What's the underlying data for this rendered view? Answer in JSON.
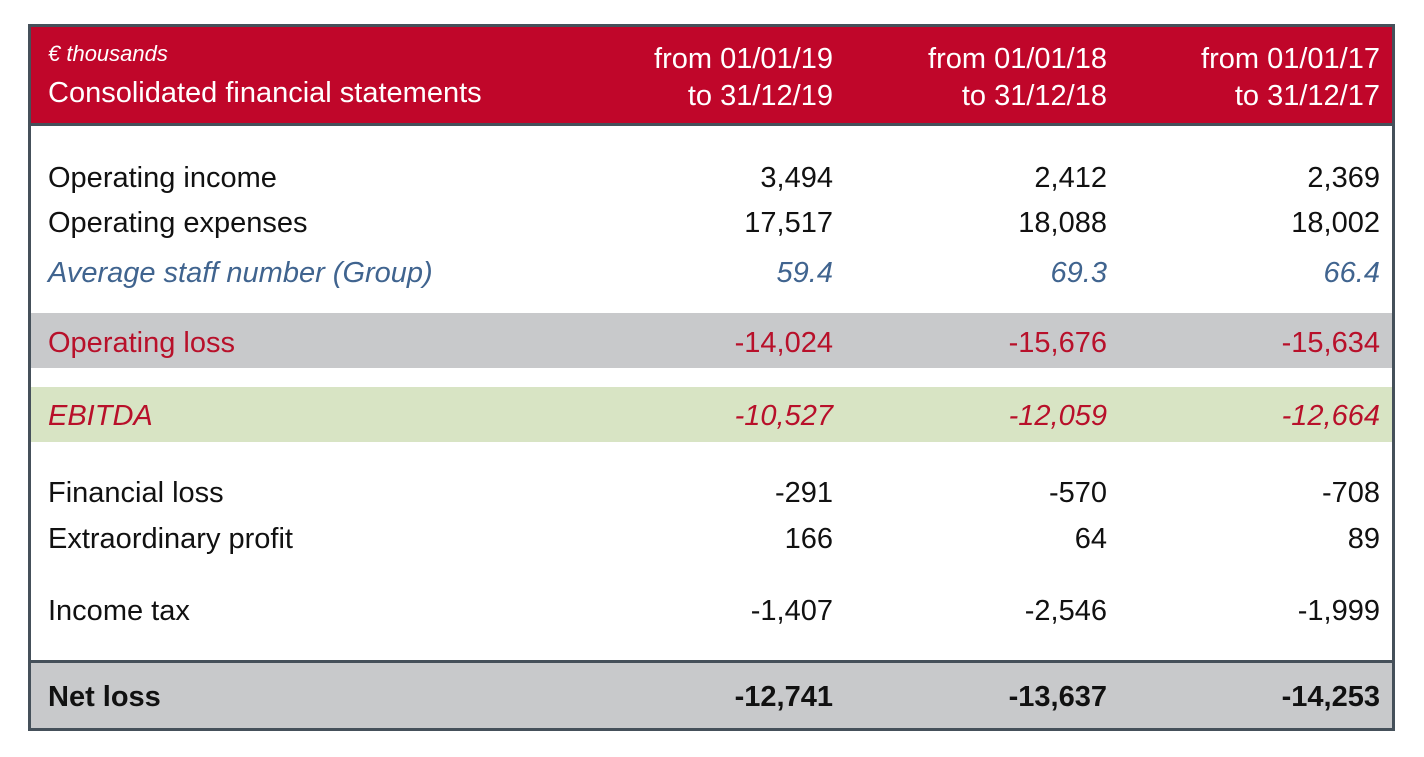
{
  "header": {
    "unit": "€ thousands",
    "statement": "Consolidated financial statements",
    "periods": [
      {
        "from": "from 01/01/19",
        "to": "to 31/12/19"
      },
      {
        "from": "from 01/01/18",
        "to": "to 31/12/18"
      },
      {
        "from": "from 01/01/17",
        "to": "to 31/12/17"
      }
    ]
  },
  "rows": {
    "operating_income": {
      "label": "Operating income",
      "values": [
        "3,494",
        "2,412",
        "2,369"
      ]
    },
    "operating_expenses": {
      "label": "Operating expenses",
      "values": [
        "17,517",
        "18,088",
        "18,002"
      ]
    },
    "average_staff": {
      "label": "Average staff number (Group)",
      "values": [
        "59.4",
        "69.3",
        "66.4"
      ]
    },
    "operating_loss": {
      "label": "Operating loss",
      "values": [
        "-14,024",
        "-15,676",
        "-15,634"
      ]
    },
    "ebitda": {
      "label": "EBITDA",
      "values": [
        "-10,527",
        "-12,059",
        "-12,664"
      ]
    },
    "financial_loss": {
      "label": "Financial loss",
      "values": [
        "-291",
        "-570",
        "-708"
      ]
    },
    "extraordinary_profit": {
      "label": "Extraordinary profit",
      "values": [
        "166",
        "64",
        "89"
      ]
    },
    "income_tax": {
      "label": "Income tax",
      "values": [
        "-1,407",
        "-2,546",
        "-1,999"
      ]
    },
    "net_loss": {
      "label": "Net loss",
      "values": [
        "-12,741",
        "-13,637",
        "-14,253"
      ]
    }
  },
  "colors": {
    "header_red": "#c0062a",
    "border": "#45505a",
    "grey_band": "#c8c9cb",
    "green_band": "#d8e4c4",
    "loss_red": "#b8102a",
    "staff_blue": "#40648f"
  }
}
